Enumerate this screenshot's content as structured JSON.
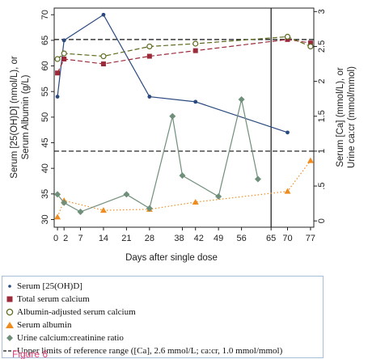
{
  "chart_data": {
    "type": "line",
    "x_ticks": [
      "0",
      "2",
      "7",
      "14",
      "21",
      "28",
      "38",
      "42",
      "49",
      "56",
      "65",
      "70",
      "77"
    ],
    "x_tick_values": [
      0,
      2,
      7,
      14,
      21,
      28,
      38,
      42,
      49,
      56,
      65,
      70,
      77
    ],
    "xlabel": "Days after single dose",
    "xlim": [
      -1,
      78
    ],
    "left_axis": {
      "label_line1": "Serum [25(OH)D] (nmol/L), or",
      "label_line2": "Serum Albumin (g/L)",
      "ylim": [
        28.5,
        71.3
      ],
      "ticks": [
        "30",
        "35",
        "40",
        "45",
        "50",
        "55",
        "60",
        "65",
        "70"
      ],
      "tick_values": [
        30,
        35,
        40,
        45,
        50,
        55,
        60,
        65,
        70
      ]
    },
    "right_axis": {
      "label_line1": "Serum [Ca] (mmol/L), or",
      "label_line2": "Urine ca:cr (mmol/mmol)",
      "ylim": [
        -0.09,
        3.05
      ],
      "ticks": [
        "0",
        ".5",
        "1",
        "1.5",
        "2",
        "2.5",
        "3"
      ],
      "tick_values": [
        0,
        0.5,
        1,
        1.5,
        2,
        2.5,
        3
      ]
    },
    "vertical_line_x": 65,
    "series": [
      {
        "name": "Serum [25(OH)D]",
        "axis": "left",
        "color": "#2a4a7f",
        "marker": "dot",
        "line": "solid",
        "x": [
          0,
          2,
          14,
          28,
          42,
          70
        ],
        "y": [
          54,
          65,
          70,
          54,
          53,
          47
        ]
      },
      {
        "name": "Total serum calcium",
        "axis": "right",
        "color": "#9b2a3a",
        "marker": "square",
        "line": "dash",
        "x": [
          0,
          2,
          14,
          28,
          42,
          70,
          77
        ],
        "y": [
          2.12,
          2.32,
          2.25,
          2.36,
          2.44,
          2.6,
          2.55
        ]
      },
      {
        "name": "Albumin-adjusted serum calcium",
        "axis": "right",
        "color": "#5e6b1e",
        "marker": "hollow-circle",
        "line": "dash",
        "x": [
          0,
          2,
          14,
          28,
          42,
          70,
          77
        ],
        "y": [
          2.32,
          2.4,
          2.36,
          2.5,
          2.54,
          2.64,
          2.5
        ]
      },
      {
        "name": "Serum albumin",
        "axis": "left",
        "color": "#f08c1e",
        "marker": "triangle",
        "line": "dot",
        "x": [
          0,
          2,
          14,
          28,
          42,
          70,
          77
        ],
        "y": [
          30.5,
          33.7,
          31.8,
          32,
          33.4,
          35.5,
          41.5
        ]
      },
      {
        "name": "Urine calcium:creatinine ratio",
        "axis": "right",
        "color": "#6f8f7a",
        "marker": "diamond",
        "line": "solid",
        "x": [
          0,
          2,
          7,
          21,
          28,
          35,
          38,
          49,
          56,
          61
        ],
        "y": [
          0.38,
          0.26,
          0.13,
          0.38,
          0.18,
          1.5,
          0.65,
          0.35,
          1.74,
          0.6
        ]
      }
    ],
    "reference_lines": [
      {
        "axis": "right",
        "value": 2.6
      },
      {
        "axis": "right",
        "value": 1.0
      }
    ],
    "legend_position": "bottom",
    "legend_texts": [
      "Serum [25(OH)D]",
      "Total serum calcium",
      "Albumin-adjusted serum calcium",
      "Serum albumin",
      "Urine calcium:creatinine ratio",
      "Upper limits of reference range ([Ca], 2.6 mmol/L; ca:cr, 1.0 mmol/mmol)"
    ]
  },
  "figure_label": "Figure 6"
}
